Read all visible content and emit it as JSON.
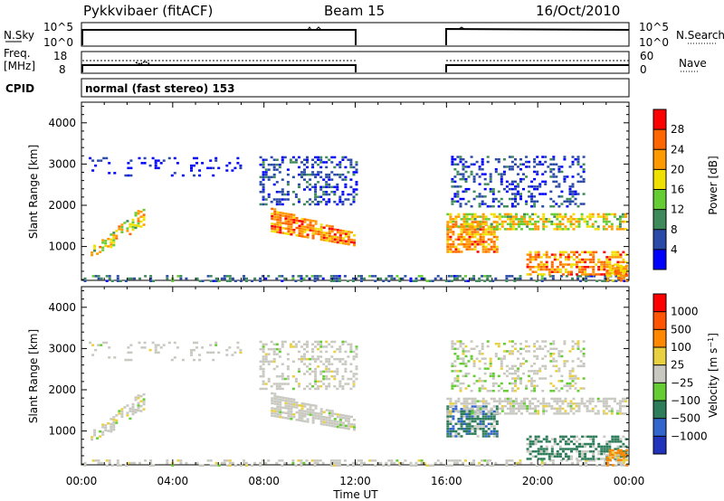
{
  "header": {
    "station": "Pykkvibaer (fitACF)",
    "beam": "Beam 15",
    "date": "16/Oct/2010"
  },
  "strip_labels": {
    "nsky": "N.Sky",
    "nsky_top": "10^5",
    "nsky_bottom": "10^0",
    "freq_line1": "Freq.",
    "freq_line2": "[MHz]",
    "freq_top": "18",
    "freq_bottom": "8",
    "cpid": "CPID",
    "cpid_value": "normal (fast stereo) 153",
    "nsearch": "N.Search",
    "nsearch_top": "10^5",
    "nsearch_bottom": "10^0",
    "nave": "Nave",
    "nave_top": "60",
    "nave_bottom": "0"
  },
  "chart_data": [
    {
      "type": "heatmap",
      "title": "",
      "xlabel": "Time UT",
      "ylabel": "Slant Range [km]",
      "x_ticks": [
        "00:00",
        "04:00",
        "08:00",
        "12:00",
        "16:00",
        "20:00",
        "00:00"
      ],
      "xlim": [
        0,
        24
      ],
      "ylim": [
        180,
        4500
      ],
      "y_ticks": [
        1000,
        2000,
        3000,
        4000
      ],
      "data_gaps": [
        [
          12,
          16
        ]
      ],
      "colorbar": {
        "label": "Power [dB]",
        "ticks": [
          4,
          8,
          12,
          16,
          20,
          24,
          28
        ],
        "colors": [
          "#0000ff",
          "#2a4aa8",
          "#3e8a5a",
          "#66cc33",
          "#f0e000",
          "#ff9900",
          "#ff6600",
          "#ff0000"
        ]
      }
    },
    {
      "type": "heatmap",
      "title": "",
      "xlabel": "Time UT",
      "ylabel": "Slant Range [km]",
      "x_ticks": [
        "00:00",
        "04:00",
        "08:00",
        "12:00",
        "16:00",
        "20:00",
        "00:00"
      ],
      "xlim": [
        0,
        24
      ],
      "ylim": [
        180,
        4500
      ],
      "y_ticks": [
        1000,
        2000,
        3000,
        4000
      ],
      "data_gaps": [
        [
          12,
          16
        ]
      ],
      "colorbar": {
        "label": "Velocity [m s^-1]",
        "ticks": [
          1000,
          500,
          100,
          25,
          -25,
          -100,
          -500,
          -1000
        ],
        "colors": [
          "#2233bb",
          "#3366cc",
          "#2e7d5a",
          "#66cc33",
          "#c8c8c0",
          "#e8d040",
          "#ff8800",
          "#ff5500",
          "#ff0000"
        ]
      }
    }
  ],
  "colors": {
    "power_high": "#ff0000",
    "velocity_ground": "#c8c8c0"
  }
}
